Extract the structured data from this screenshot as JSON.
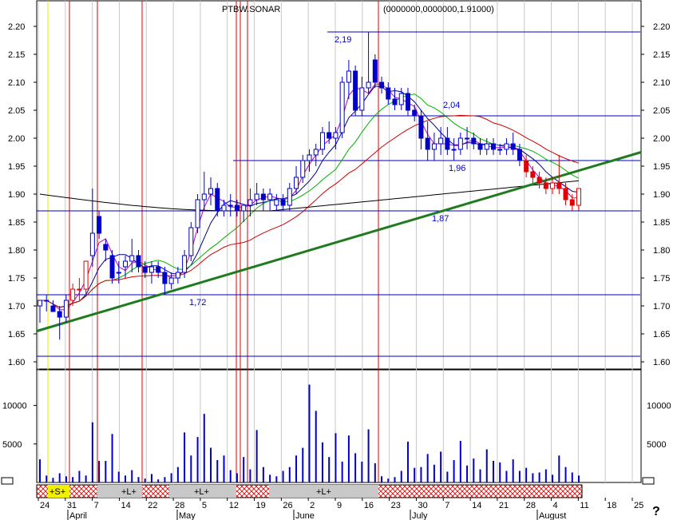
{
  "header": {
    "title": "PTBW.SONAR",
    "overlay_text": "(0000000,0000000,1.91000)"
  },
  "chart_data": {
    "type": "candlestick",
    "y_axis": {
      "min": 1.6,
      "max": 2.2,
      "ticks": [
        "2.20",
        "2.15",
        "2.10",
        "2.05",
        "2.00",
        "1.95",
        "1.90",
        "1.85",
        "1.80",
        "1.75",
        "1.70",
        "1.65",
        "1.60"
      ]
    },
    "volume_axis": {
      "ticks": [
        "10000",
        "5000"
      ],
      "max": 14000
    },
    "x_axis": {
      "date_ticks": [
        "24",
        "31",
        "7",
        "14",
        "22",
        "28",
        "5",
        "12",
        "19",
        "26",
        "2",
        "9",
        "16",
        "23",
        "30",
        "7",
        "14",
        "21",
        "28",
        "4",
        "11",
        "18",
        "25"
      ],
      "months": [
        "April",
        "May",
        "June",
        "July",
        "August"
      ]
    },
    "annotations": {
      "price_labels": [
        "2,19",
        "2,04",
        "1,96",
        "1,87",
        "1,72"
      ],
      "horizontal_levels": [
        2.19,
        2.04,
        1.96,
        1.87,
        1.72,
        1.61
      ],
      "trendline": {
        "start": [
          "24",
          1.655
        ],
        "end": [
          "25",
          1.975
        ]
      },
      "signals": [
        "+S+",
        "+L+",
        "+L+",
        "+L+"
      ]
    },
    "candles": [
      [
        1.7,
        1.71,
        1.67,
        1.71
      ],
      [
        1.71,
        1.72,
        1.69,
        1.71
      ],
      [
        1.7,
        1.71,
        1.69,
        1.69
      ],
      [
        1.69,
        1.7,
        1.64,
        1.68
      ],
      [
        1.68,
        1.72,
        1.67,
        1.71
      ],
      [
        1.71,
        1.74,
        1.7,
        1.73
      ],
      [
        1.73,
        1.75,
        1.71,
        1.73
      ],
      [
        1.73,
        1.78,
        1.72,
        1.78
      ],
      [
        1.79,
        1.91,
        1.77,
        1.83
      ],
      [
        1.86,
        1.87,
        1.82,
        1.83
      ],
      [
        1.81,
        1.82,
        1.78,
        1.8
      ],
      [
        1.79,
        1.8,
        1.74,
        1.75
      ],
      [
        1.76,
        1.78,
        1.74,
        1.76
      ],
      [
        1.77,
        1.79,
        1.75,
        1.78
      ],
      [
        1.78,
        1.82,
        1.76,
        1.79
      ],
      [
        1.79,
        1.8,
        1.76,
        1.77
      ],
      [
        1.77,
        1.78,
        1.75,
        1.76
      ],
      [
        1.76,
        1.78,
        1.74,
        1.77
      ],
      [
        1.77,
        1.78,
        1.75,
        1.76
      ],
      [
        1.76,
        1.77,
        1.72,
        1.74
      ],
      [
        1.74,
        1.76,
        1.73,
        1.75
      ],
      [
        1.75,
        1.77,
        1.74,
        1.76
      ],
      [
        1.76,
        1.8,
        1.75,
        1.79
      ],
      [
        1.79,
        1.85,
        1.78,
        1.84
      ],
      [
        1.84,
        1.9,
        1.83,
        1.89
      ],
      [
        1.89,
        1.94,
        1.87,
        1.9
      ],
      [
        1.9,
        1.93,
        1.88,
        1.91
      ],
      [
        1.91,
        1.92,
        1.86,
        1.87
      ],
      [
        1.87,
        1.89,
        1.86,
        1.88
      ],
      [
        1.88,
        1.9,
        1.86,
        1.88
      ],
      [
        1.88,
        1.89,
        1.86,
        1.87
      ],
      [
        1.87,
        1.88,
        1.85,
        1.88
      ],
      [
        1.88,
        1.91,
        1.86,
        1.89
      ],
      [
        1.89,
        1.92,
        1.88,
        1.9
      ],
      [
        1.9,
        1.91,
        1.87,
        1.89
      ],
      [
        1.89,
        1.91,
        1.87,
        1.9
      ],
      [
        1.88,
        1.9,
        1.87,
        1.89
      ],
      [
        1.89,
        1.9,
        1.87,
        1.88
      ],
      [
        1.88,
        1.92,
        1.87,
        1.91
      ],
      [
        1.91,
        1.95,
        1.9,
        1.93
      ],
      [
        1.93,
        1.97,
        1.92,
        1.96
      ],
      [
        1.96,
        1.98,
        1.94,
        1.97
      ],
      [
        1.97,
        1.99,
        1.95,
        1.98
      ],
      [
        1.98,
        2.02,
        1.97,
        2.01
      ],
      [
        2.01,
        2.03,
        1.99,
        2.0
      ],
      [
        2.0,
        2.02,
        1.98,
        2.01
      ],
      [
        2.01,
        2.11,
        2.0,
        2.1
      ],
      [
        2.1,
        2.14,
        2.07,
        2.12
      ],
      [
        2.12,
        2.13,
        2.04,
        2.05
      ],
      [
        2.05,
        2.11,
        2.04,
        2.09
      ],
      [
        2.09,
        2.19,
        2.08,
        2.1
      ],
      [
        2.14,
        2.15,
        2.09,
        2.1
      ],
      [
        2.1,
        2.11,
        2.08,
        2.09
      ],
      [
        2.09,
        2.1,
        2.06,
        2.07
      ],
      [
        2.07,
        2.09,
        2.05,
        2.06
      ],
      [
        2.06,
        2.09,
        2.05,
        2.08
      ],
      [
        2.08,
        2.09,
        2.04,
        2.05
      ],
      [
        2.05,
        2.06,
        2.03,
        2.04
      ],
      [
        2.04,
        2.05,
        1.98,
        2.0
      ],
      [
        2.0,
        2.03,
        1.96,
        1.98
      ],
      [
        1.98,
        2.01,
        1.96,
        1.99
      ],
      [
        1.99,
        2.02,
        1.97,
        2.0
      ],
      [
        2.0,
        2.02,
        1.97,
        1.98
      ],
      [
        1.98,
        2.0,
        1.96,
        1.98
      ],
      [
        1.98,
        2.01,
        1.97,
        2.0
      ],
      [
        2.0,
        2.02,
        1.98,
        2.0
      ],
      [
        2.0,
        2.01,
        1.98,
        1.99
      ],
      [
        1.99,
        2.0,
        1.97,
        1.98
      ],
      [
        1.98,
        2.0,
        1.97,
        1.99
      ],
      [
        1.99,
        2.0,
        1.97,
        1.98
      ],
      [
        1.98,
        1.99,
        1.97,
        1.98
      ],
      [
        1.98,
        2.0,
        1.97,
        1.99
      ],
      [
        1.99,
        2.01,
        1.97,
        1.98
      ],
      [
        1.98,
        1.99,
        1.95,
        1.96
      ],
      [
        1.96,
        1.97,
        1.93,
        1.94
      ],
      [
        1.94,
        1.95,
        1.92,
        1.93
      ],
      [
        1.93,
        1.94,
        1.91,
        1.92
      ],
      [
        1.92,
        1.93,
        1.9,
        1.91
      ],
      [
        1.91,
        1.93,
        1.9,
        1.92
      ],
      [
        1.92,
        1.97,
        1.9,
        1.91
      ],
      [
        1.91,
        1.92,
        1.88,
        1.89
      ],
      [
        1.89,
        1.9,
        1.87,
        1.88
      ],
      [
        1.88,
        1.91,
        1.87,
        1.91
      ]
    ],
    "volumes": [
      3000,
      900,
      600,
      1200,
      800,
      700,
      1500,
      900,
      7800,
      2800,
      2800,
      6300,
      1400,
      900,
      1600,
      700,
      500,
      1100,
      400,
      700,
      1200,
      2000,
      6500,
      3500,
      5900,
      8900,
      4500,
      2900,
      3500,
      1600,
      1200,
      3300,
      1700,
      6800,
      2000,
      1000,
      800,
      1500,
      2000,
      3500,
      4500,
      12700,
      9300,
      5200,
      3300,
      6400,
      2700,
      6100,
      3800,
      2700,
      6900,
      2500,
      800,
      500,
      700,
      1500,
      5300,
      1900,
      2000,
      3700,
      2300,
      4000,
      1400,
      2900,
      5400,
      2200,
      3100,
      1700,
      4300,
      2800,
      2600,
      1500,
      3000,
      1500,
      1900,
      1200,
      1300,
      1700,
      1000,
      3500,
      2000,
      1300,
      900
    ]
  }
}
